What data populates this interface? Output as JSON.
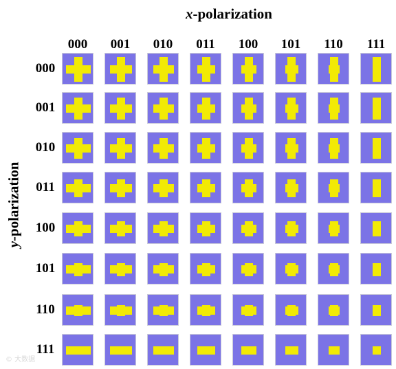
{
  "x_axis_title": {
    "var": "x",
    "rest": "-polarization"
  },
  "y_axis_title": {
    "var": "y",
    "rest": "-polarization"
  },
  "column_codes": [
    "000",
    "001",
    "010",
    "011",
    "100",
    "101",
    "110",
    "111"
  ],
  "row_codes": [
    "000",
    "001",
    "010",
    "011",
    "100",
    "101",
    "110",
    "111"
  ],
  "colors": {
    "cell_background": "#7b73e6",
    "pattern": "#f2ea05"
  },
  "watermark": "© 大数据"
}
